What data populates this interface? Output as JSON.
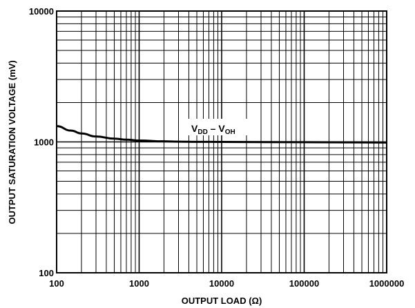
{
  "chart_data": {
    "type": "line",
    "xlabel": "OUTPUT LOAD (Ω)",
    "ylabel": "OUTPUT SATURATION VOLTAGE (mV)",
    "xscale": "log",
    "yscale": "log",
    "xlim": [
      100,
      1000000
    ],
    "ylim": [
      100,
      10000
    ],
    "grid": true,
    "x_tick_labels": [
      "100",
      "1000",
      "10000",
      "100000",
      "1000000"
    ],
    "y_tick_labels": [
      "100",
      "1000",
      "10000"
    ],
    "annotation": {
      "main1": "V",
      "sub1": "DD",
      "dash": " – V",
      "sub2": "OH"
    },
    "series": [
      {
        "x": [
          100,
          150,
          200,
          300,
          500,
          700,
          1000,
          2000,
          3000,
          5000,
          10000,
          100000,
          1000000
        ],
        "y": [
          1320,
          1220,
          1160,
          1100,
          1060,
          1040,
          1025,
          1010,
          1005,
          1002,
          1000,
          995,
          990
        ]
      }
    ]
  }
}
